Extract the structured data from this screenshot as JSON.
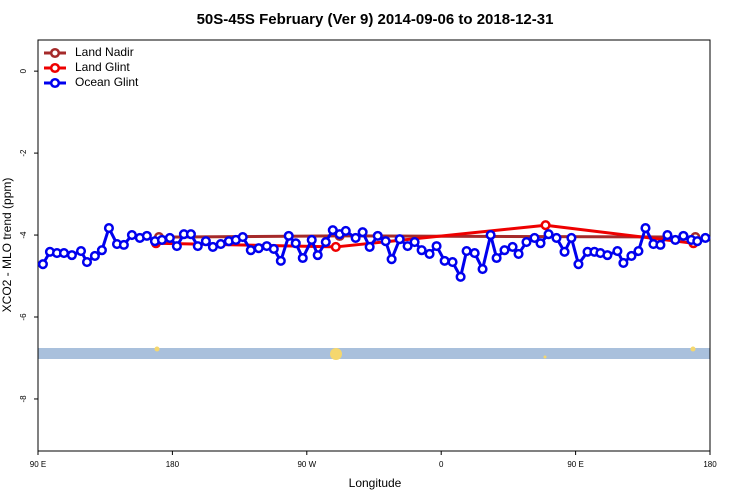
{
  "chart_data": {
    "type": "line",
    "title": "50S-45S February (Ver 9)   2014-09-06 to 2018-12-31",
    "x_label": "Longitude",
    "y_label": "XCO2 - MLO trend (ppm)",
    "xlim": [
      90,
      540
    ],
    "ylim": [
      -9.27,
      0.76
    ],
    "xticks": [
      {
        "value": 90,
        "label": "90 E"
      },
      180,
      {
        "value": 270,
        "label": "90 W"
      },
      {
        "value": 360,
        "label": "0"
      },
      {
        "value": 450,
        "label": "90 E"
      },
      {
        "value": 540,
        "label": "180"
      }
    ],
    "yticks": [
      0,
      -2,
      -4,
      -6,
      -8
    ],
    "legend": "top-left",
    "series": [
      {
        "name": "Land Nadir",
        "color": "#a52a2a",
        "x": [
          171.0,
          292.0,
          530.2
        ],
        "values": [
          -4.05,
          -4.02,
          -4.05
        ]
      },
      {
        "name": "Land Glint",
        "color": "#ee0000",
        "x": [
          169.0,
          289.4,
          429.9,
          528.9
        ],
        "values": [
          -4.2,
          -4.29,
          -3.76,
          -4.2
        ]
      },
      {
        "name": "Ocean Glint",
        "color": "#0000ee",
        "x": [
          93.3,
          98.0,
          102.7,
          107.4,
          112.7,
          118.8,
          122.8,
          128.1,
          132.8,
          137.5,
          142.9,
          147.5,
          152.9,
          158.2,
          162.9,
          168.3,
          173.0,
          178.3,
          183.0,
          187.7,
          192.4,
          197.0,
          202.4,
          207.1,
          212.4,
          217.8,
          222.5,
          227.1,
          232.5,
          237.8,
          243.2,
          247.9,
          252.6,
          257.9,
          262.6,
          267.3,
          273.3,
          277.3,
          282.7,
          287.4,
          292.0,
          296.1,
          302.7,
          307.4,
          312.1,
          317.5,
          322.8,
          326.8,
          332.2,
          337.5,
          342.2,
          346.9,
          352.2,
          356.9,
          362.3,
          367.6,
          373.0,
          377.0,
          382.4,
          387.7,
          393.1,
          397.1,
          402.4,
          407.8,
          411.8,
          417.1,
          422.5,
          426.5,
          431.9,
          437.2,
          442.6,
          447.2,
          451.9,
          458.0,
          462.6,
          466.6,
          471.3,
          478.0,
          482.0,
          487.4,
          492.1,
          496.8,
          502.1,
          506.8,
          511.5,
          516.8,
          522.2,
          527.5,
          531.5,
          536.9
        ],
        "values": [
          -4.71,
          -4.41,
          -4.44,
          -4.44,
          -4.49,
          -4.39,
          -4.66,
          -4.51,
          -4.37,
          -3.83,
          -4.22,
          -4.24,
          -4.0,
          -4.07,
          -4.02,
          -4.15,
          -4.12,
          -4.07,
          -4.27,
          -3.98,
          -3.98,
          -4.27,
          -4.15,
          -4.29,
          -4.22,
          -4.15,
          -4.12,
          -4.05,
          -4.37,
          -4.32,
          -4.27,
          -4.34,
          -4.63,
          -4.02,
          -4.2,
          -4.56,
          -4.12,
          -4.49,
          -4.17,
          -3.88,
          -3.98,
          -3.9,
          -4.07,
          -3.93,
          -4.29,
          -4.02,
          -4.15,
          -4.59,
          -4.1,
          -4.27,
          -4.17,
          -4.37,
          -4.46,
          -4.27,
          -4.63,
          -4.66,
          -5.02,
          -4.39,
          -4.44,
          -4.83,
          -4.0,
          -4.56,
          -4.37,
          -4.29,
          -4.46,
          -4.17,
          -4.07,
          -4.2,
          -3.98,
          -4.07,
          -4.41,
          -4.07,
          -4.71,
          -4.41,
          -4.41,
          -4.44,
          -4.49,
          -4.39,
          -4.68,
          -4.51,
          -4.39,
          -3.83,
          -4.22,
          -4.24,
          -4.0,
          -4.12,
          -4.02,
          -4.12,
          -4.15,
          -4.07
        ]
      }
    ]
  }
}
